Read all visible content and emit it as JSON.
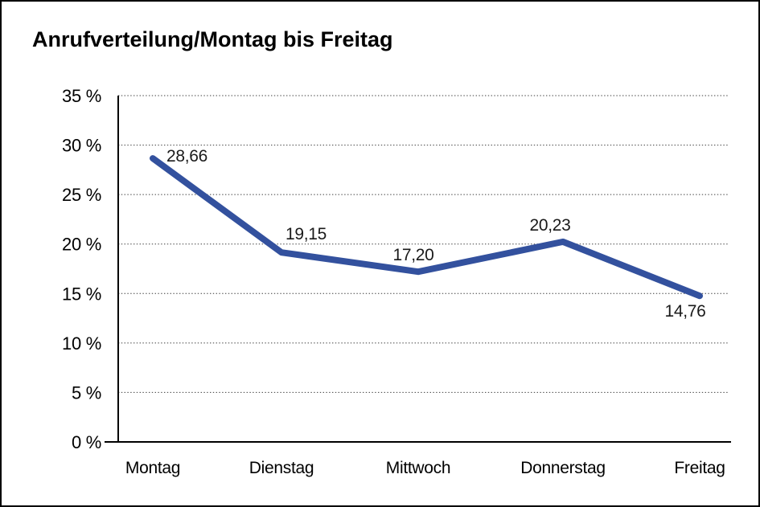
{
  "title": "Anrufverteilung/Montag bis Freitag",
  "chart_data": {
    "type": "line",
    "title": "Anrufverteilung/Montag bis Freitag",
    "categories": [
      "Montag",
      "Dienstag",
      "Mittwoch",
      "Donnerstag",
      "Freitag"
    ],
    "series": [
      {
        "name": "Anrufverteilung",
        "values": [
          28.66,
          19.15,
          17.2,
          20.23,
          14.76
        ],
        "color": "#33519e"
      }
    ],
    "data_labels": [
      "28,66",
      "19,15",
      "17,20",
      "20,23",
      "14,76"
    ],
    "xlabel": "",
    "ylabel": "",
    "ylim": [
      0,
      35
    ],
    "y_tick_step": 5,
    "y_tick_labels": [
      "0 %",
      "5 %",
      "10 %",
      "15 %",
      "20 %",
      "25 %",
      "30 %",
      "35 %"
    ],
    "grid": "horizontal-dotted",
    "legend_position": "none",
    "colors": {
      "line": "#33519e",
      "grid": "#3c3c3c",
      "axis": "#000000",
      "label_text": "#1a1a1a",
      "background": "#ffffff",
      "frame_border": "#000000"
    }
  }
}
